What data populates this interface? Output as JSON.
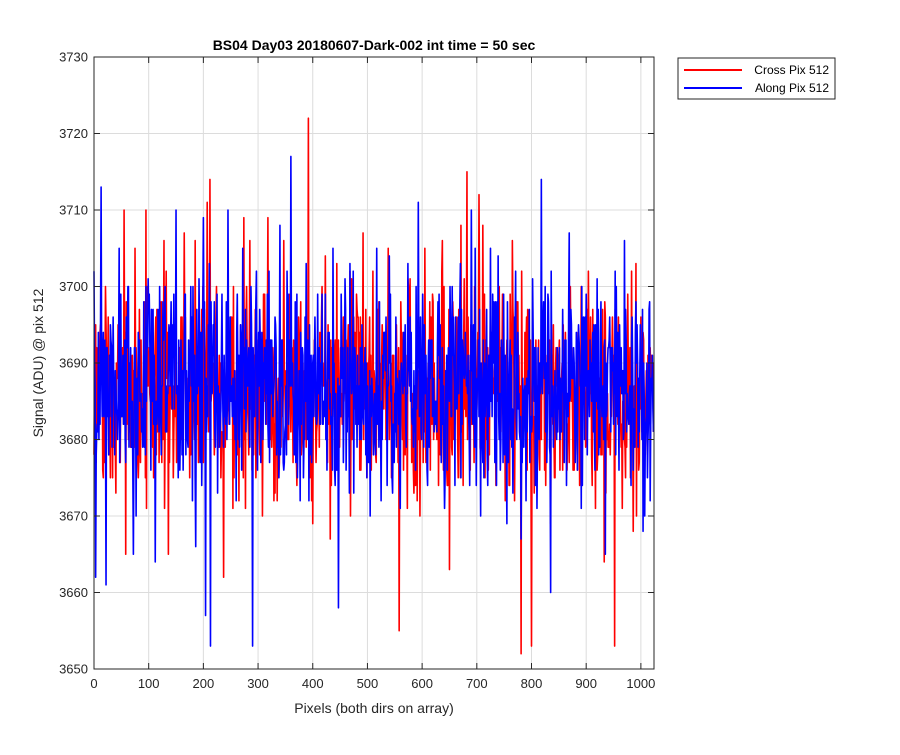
{
  "chart_data": {
    "type": "line",
    "title": "BS04 Day03 20180607-Dark-002 int time = 50 sec",
    "xlabel": "Pixels (both dirs on array)",
    "ylabel": "Signal (ADU) @ pix 512",
    "xlim": [
      0,
      1024
    ],
    "ylim": [
      3650,
      3730
    ],
    "xticks": [
      0,
      100,
      200,
      300,
      400,
      500,
      600,
      700,
      800,
      900,
      1000
    ],
    "yticks": [
      3650,
      3660,
      3670,
      3680,
      3690,
      3700,
      3710,
      3720,
      3730
    ],
    "xtick_labels": [
      "0",
      "100",
      "200",
      "300",
      "400",
      "500",
      "600",
      "700",
      "800",
      "900",
      "1000"
    ],
    "ytick_labels": [
      "3650",
      "3660",
      "3670",
      "3680",
      "3690",
      "3700",
      "3710",
      "3720",
      "3730"
    ],
    "grid": true,
    "legend_position": "outside top-right",
    "n_points": 1024,
    "series": [
      {
        "name": "Cross Pix 512",
        "color": "#ff0000",
        "mean": 3686,
        "spread": 8,
        "min": 3652,
        "max": 3722,
        "spikes": [
          [
            5,
            3692
          ],
          [
            30,
            3675
          ],
          [
            55,
            3710
          ],
          [
            58,
            3665
          ],
          [
            75,
            3705
          ],
          [
            95,
            3710
          ],
          [
            128,
            3706
          ],
          [
            136,
            3665
          ],
          [
            165,
            3707
          ],
          [
            180,
            3680
          ],
          [
            185,
            3706
          ],
          [
            207,
            3711
          ],
          [
            212,
            3714
          ],
          [
            237,
            3662
          ],
          [
            255,
            3700
          ],
          [
            274,
            3709
          ],
          [
            285,
            3706
          ],
          [
            310,
            3699
          ],
          [
            318,
            3709
          ],
          [
            347,
            3706
          ],
          [
            380,
            3680
          ],
          [
            392,
            3722
          ],
          [
            400,
            3669
          ],
          [
            423,
            3704
          ],
          [
            432,
            3667
          ],
          [
            465,
            3695
          ],
          [
            471,
            3701
          ],
          [
            492,
            3707
          ],
          [
            538,
            3705
          ],
          [
            553,
            3695
          ],
          [
            558,
            3655
          ],
          [
            605,
            3705
          ],
          [
            620,
            3698
          ],
          [
            637,
            3706
          ],
          [
            650,
            3663
          ],
          [
            671,
            3708
          ],
          [
            682,
            3715
          ],
          [
            704,
            3712
          ],
          [
            711,
            3708
          ],
          [
            741,
            3700
          ],
          [
            765,
            3706
          ],
          [
            781,
            3652
          ],
          [
            800,
            3653
          ],
          [
            835,
            3669
          ],
          [
            862,
            3694
          ],
          [
            878,
            3676
          ],
          [
            933,
            3664
          ],
          [
            952,
            3653
          ],
          [
            986,
            3668
          ],
          [
            1022,
            3690
          ]
        ]
      },
      {
        "name": "Along Pix 512",
        "color": "#0000ff",
        "mean": 3687,
        "spread": 8,
        "min": 3653,
        "max": 3717,
        "spikes": [
          [
            3,
            3662
          ],
          [
            13,
            3713
          ],
          [
            22,
            3661
          ],
          [
            35,
            3696
          ],
          [
            46,
            3705
          ],
          [
            72,
            3665
          ],
          [
            99,
            3701
          ],
          [
            112,
            3664
          ],
          [
            120,
            3700
          ],
          [
            150,
            3710
          ],
          [
            181,
            3700
          ],
          [
            186,
            3666
          ],
          [
            200,
            3709
          ],
          [
            204,
            3657
          ],
          [
            213,
            3653
          ],
          [
            245,
            3710
          ],
          [
            260,
            3672
          ],
          [
            272,
            3705
          ],
          [
            290,
            3653
          ],
          [
            300,
            3689
          ],
          [
            320,
            3702
          ],
          [
            340,
            3708
          ],
          [
            360,
            3717
          ],
          [
            377,
            3672
          ],
          [
            413,
            3682
          ],
          [
            437,
            3705
          ],
          [
            447,
            3658
          ],
          [
            459,
            3701
          ],
          [
            475,
            3673
          ],
          [
            517,
            3705
          ],
          [
            540,
            3704
          ],
          [
            560,
            3671
          ],
          [
            574,
            3703
          ],
          [
            593,
            3711
          ],
          [
            629,
            3698
          ],
          [
            651,
            3700
          ],
          [
            683,
            3686
          ],
          [
            690,
            3710
          ],
          [
            725,
            3705
          ],
          [
            737,
            3698
          ],
          [
            755,
            3669
          ],
          [
            781,
            3667
          ],
          [
            810,
            3671
          ],
          [
            818,
            3714
          ],
          [
            835,
            3660
          ],
          [
            869,
            3707
          ],
          [
            897,
            3680
          ],
          [
            923,
            3678
          ],
          [
            935,
            3665
          ],
          [
            970,
            3706
          ],
          [
            1004,
            3668
          ],
          [
            1022,
            3684
          ]
        ]
      }
    ]
  }
}
